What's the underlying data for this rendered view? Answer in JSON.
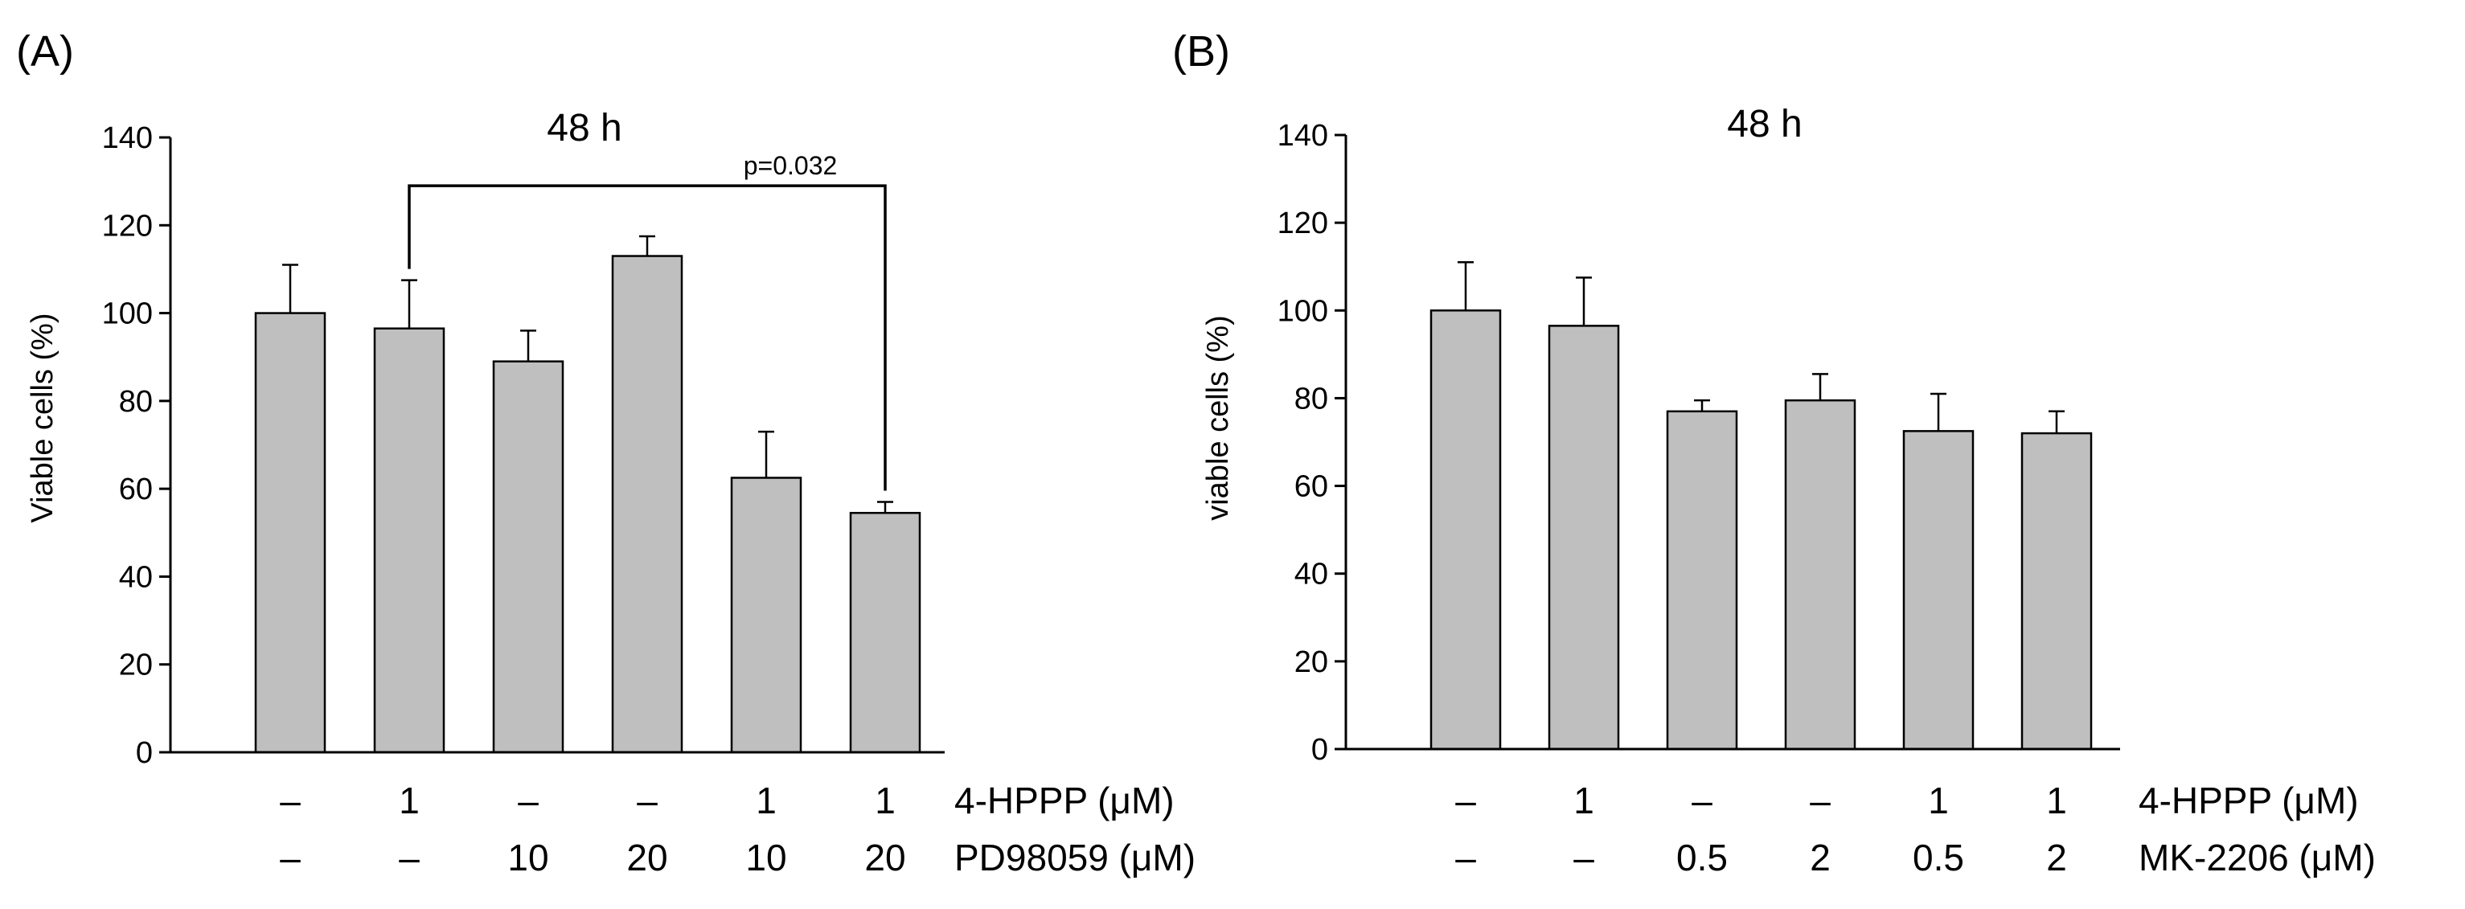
{
  "chart_data": [
    {
      "panel_label": "(A)",
      "type": "bar",
      "title": "48 h",
      "ylabel": "Viable cells (%)",
      "ylim": [
        0,
        140
      ],
      "yticks": [
        0,
        20,
        40,
        60,
        80,
        100,
        120,
        140
      ],
      "values": [
        100,
        96.5,
        89,
        113,
        62.5,
        54.5
      ],
      "errors": [
        11,
        11,
        7,
        4.5,
        10.5,
        2.5
      ],
      "conditions": [
        {
          "label": "4-HPPP (μM)",
          "values": [
            "–",
            "1",
            "–",
            "–",
            "1",
            "1"
          ]
        },
        {
          "label": "PD98059 (μM)",
          "values": [
            "–",
            "–",
            "10",
            "20",
            "10",
            "20"
          ]
        }
      ],
      "annotation": {
        "text": "p=0.032",
        "from_bar": 1,
        "to_bar": 5,
        "bracket_y": 129
      }
    },
    {
      "panel_label": "(B)",
      "type": "bar",
      "title": "48 h",
      "ylabel": "viable cells (%)",
      "ylim": [
        0,
        140
      ],
      "yticks": [
        0,
        20,
        40,
        60,
        80,
        100,
        120,
        140
      ],
      "values": [
        100,
        96.5,
        77,
        79.5,
        72.5,
        72
      ],
      "errors": [
        11,
        11,
        2.5,
        6,
        8.5,
        5
      ],
      "conditions": [
        {
          "label": "4-HPPP (μM)",
          "values": [
            "–",
            "1",
            "–",
            "–",
            "1",
            "1"
          ]
        },
        {
          "label": "MK-2206 (μM)",
          "values": [
            "–",
            "–",
            "0.5",
            "2",
            "0.5",
            "2"
          ]
        }
      ]
    }
  ]
}
